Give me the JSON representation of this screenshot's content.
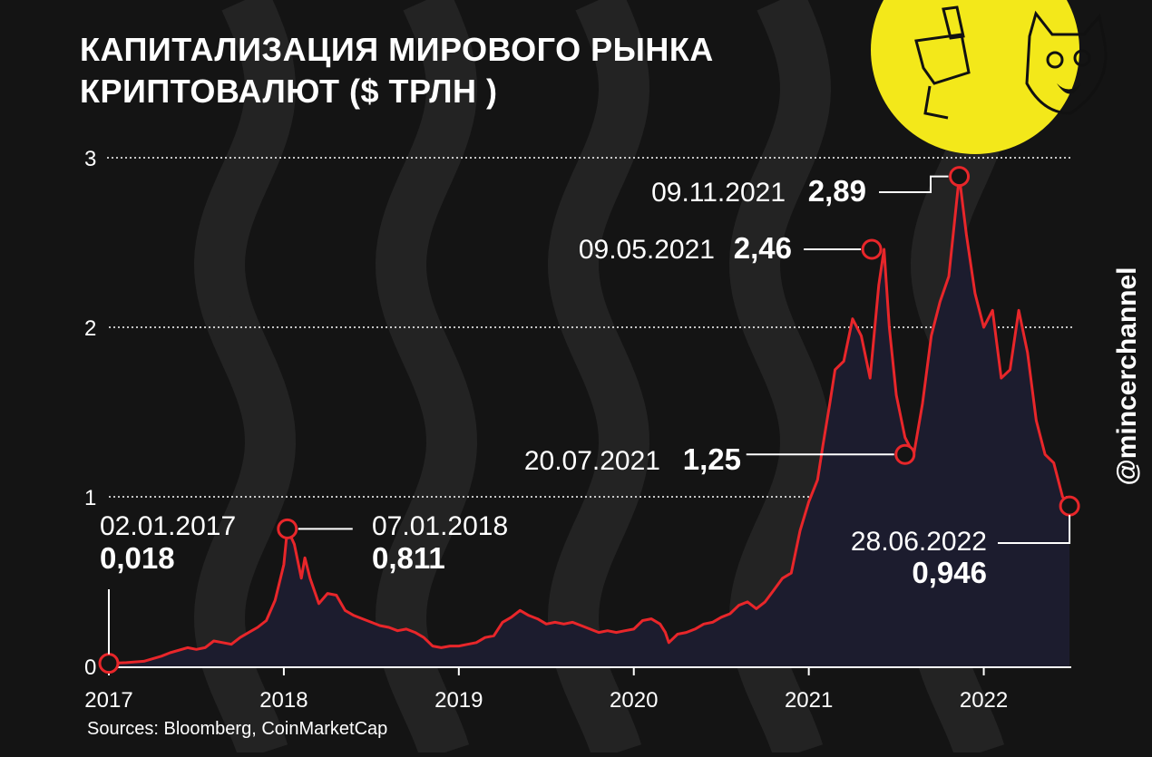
{
  "chart_data": {
    "type": "area",
    "title_lines": [
      "КАПИТАЛИЗАЦИЯ МИРОВОГО РЫНКА",
      "КРИПТОВАЛЮТ ($ ТРЛН )"
    ],
    "source": "Sources: Bloomberg, CoinMarketCap",
    "watermark": "@mincerchannel",
    "xlabel": "",
    "ylabel": "",
    "x_ticks": [
      "2017",
      "2018",
      "2019",
      "2020",
      "2021",
      "2022"
    ],
    "y_ticks": [
      "0",
      "1",
      "2",
      "3"
    ],
    "xlim": [
      2017.0,
      2022.5
    ],
    "ylim": [
      0,
      3
    ],
    "grid": "horizontal dotted",
    "colors": {
      "line": "#e8262a",
      "area": "#1c1c2e",
      "background": "#141414",
      "badge": "#f3e81a",
      "grid": "#ffffff"
    },
    "series": [
      {
        "x": [
          2017.0,
          2017.1,
          2017.2,
          2017.3,
          2017.35,
          2017.45,
          2017.5,
          2017.55,
          2017.6,
          2017.65,
          2017.7,
          2017.75,
          2017.8,
          2017.85,
          2017.9,
          2017.95,
          2018.0,
          2018.02,
          2018.06,
          2018.1,
          2018.12,
          2018.15,
          2018.2,
          2018.25,
          2018.3,
          2018.35,
          2018.4,
          2018.45,
          2018.5,
          2018.55,
          2018.6,
          2018.65,
          2018.7,
          2018.75,
          2018.8,
          2018.85,
          2018.9,
          2018.95,
          2019.0,
          2019.05,
          2019.1,
          2019.15,
          2019.2,
          2019.25,
          2019.3,
          2019.35,
          2019.4,
          2019.45,
          2019.5,
          2019.55,
          2019.6,
          2019.65,
          2019.7,
          2019.75,
          2019.8,
          2019.85,
          2019.9,
          2019.95,
          2020.0,
          2020.05,
          2020.1,
          2020.15,
          2020.18,
          2020.2,
          2020.25,
          2020.3,
          2020.35,
          2020.4,
          2020.45,
          2020.5,
          2020.55,
          2020.6,
          2020.65,
          2020.7,
          2020.75,
          2020.8,
          2020.85,
          2020.9,
          2020.95,
          2021.0,
          2021.05,
          2021.08,
          2021.12,
          2021.15,
          2021.2,
          2021.25,
          2021.3,
          2021.35,
          2021.4,
          2021.43,
          2021.46,
          2021.5,
          2021.55,
          2021.6,
          2021.65,
          2021.7,
          2021.75,
          2021.8,
          2021.86,
          2021.9,
          2021.95,
          2022.0,
          2022.05,
          2022.1,
          2022.15,
          2022.2,
          2022.25,
          2022.3,
          2022.35,
          2022.4,
          2022.45,
          2022.49
        ],
        "y": [
          0.018,
          0.022,
          0.03,
          0.06,
          0.08,
          0.11,
          0.1,
          0.11,
          0.15,
          0.14,
          0.13,
          0.17,
          0.2,
          0.23,
          0.27,
          0.39,
          0.6,
          0.811,
          0.72,
          0.52,
          0.64,
          0.52,
          0.37,
          0.43,
          0.42,
          0.33,
          0.3,
          0.28,
          0.26,
          0.24,
          0.23,
          0.21,
          0.22,
          0.2,
          0.17,
          0.12,
          0.11,
          0.12,
          0.12,
          0.13,
          0.14,
          0.17,
          0.18,
          0.26,
          0.29,
          0.33,
          0.3,
          0.28,
          0.25,
          0.26,
          0.25,
          0.26,
          0.24,
          0.22,
          0.2,
          0.21,
          0.2,
          0.21,
          0.22,
          0.27,
          0.28,
          0.25,
          0.2,
          0.14,
          0.19,
          0.2,
          0.22,
          0.25,
          0.26,
          0.29,
          0.31,
          0.36,
          0.38,
          0.34,
          0.38,
          0.45,
          0.52,
          0.55,
          0.8,
          0.97,
          1.1,
          1.3,
          1.55,
          1.75,
          1.8,
          2.05,
          1.95,
          1.7,
          2.25,
          2.46,
          2.0,
          1.6,
          1.35,
          1.25,
          1.55,
          1.95,
          2.15,
          2.3,
          2.89,
          2.55,
          2.2,
          2.0,
          2.1,
          1.7,
          1.75,
          2.1,
          1.85,
          1.45,
          1.25,
          1.2,
          1.0,
          0.946
        ]
      }
    ],
    "annotations": [
      {
        "x": 2017.0,
        "y": 0.018,
        "date": "02.01.2017",
        "value": "0,018"
      },
      {
        "x": 2018.02,
        "y": 0.811,
        "date": "07.01.2018",
        "value": "0,811"
      },
      {
        "x": 2021.36,
        "y": 2.46,
        "date": "09.05.2021",
        "value": "2,46"
      },
      {
        "x": 2021.55,
        "y": 1.25,
        "date": "20.07.2021",
        "value": "1,25"
      },
      {
        "x": 2021.86,
        "y": 2.89,
        "date": "09.11.2021",
        "value": "2,89"
      },
      {
        "x": 2022.49,
        "y": 0.946,
        "date": "28.06.2022",
        "value": "0,946"
      }
    ]
  }
}
